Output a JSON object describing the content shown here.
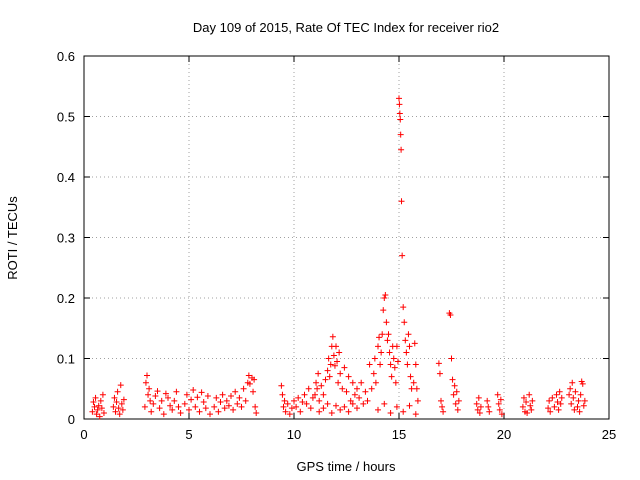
{
  "chart_data": {
    "type": "scatter",
    "title": "Day 109 of 2015, Rate Of TEC Index for receiver rio2",
    "xlabel": "GPS time / hours",
    "ylabel": "ROTI / TECUs",
    "xlim": [
      0,
      25
    ],
    "ylim": [
      0,
      0.6
    ],
    "xticks": [
      0,
      5,
      10,
      15,
      20,
      25
    ],
    "xtick_labels": [
      "0",
      "5",
      "10",
      "15",
      "20",
      "25"
    ],
    "yticks": [
      0,
      0.1,
      0.2,
      0.3,
      0.4,
      0.5,
      0.6
    ],
    "ytick_labels": [
      "0",
      "0.1",
      "0.2",
      "0.3",
      "0.4",
      "0.5",
      "0.6"
    ],
    "grid": true,
    "marker": "+",
    "color": "#ff0000",
    "series": [
      {
        "name": "rio2",
        "points": [
          [
            0.4,
            0.012
          ],
          [
            0.45,
            0.028
          ],
          [
            0.5,
            0.02
          ],
          [
            0.55,
            0.035
          ],
          [
            0.6,
            0.008
          ],
          [
            0.65,
            0.015
          ],
          [
            0.7,
            0.022
          ],
          [
            0.75,
            0.004
          ],
          [
            0.8,
            0.03
          ],
          [
            0.85,
            0.018
          ],
          [
            0.9,
            0.04
          ],
          [
            0.95,
            0.01
          ],
          [
            1.4,
            0.02
          ],
          [
            1.45,
            0.035
          ],
          [
            1.5,
            0.012
          ],
          [
            1.55,
            0.028
          ],
          [
            1.6,
            0.045
          ],
          [
            1.65,
            0.018
          ],
          [
            1.7,
            0.008
          ],
          [
            1.75,
            0.056
          ],
          [
            1.8,
            0.025
          ],
          [
            1.85,
            0.015
          ],
          [
            1.9,
            0.032
          ],
          [
            2.9,
            0.02
          ],
          [
            2.95,
            0.06
          ],
          [
            3.0,
            0.072
          ],
          [
            3.05,
            0.04
          ],
          [
            3.1,
            0.05
          ],
          [
            3.15,
            0.03
          ],
          [
            3.2,
            0.012
          ],
          [
            3.3,
            0.025
          ],
          [
            3.4,
            0.038
          ],
          [
            3.5,
            0.046
          ],
          [
            3.6,
            0.018
          ],
          [
            3.7,
            0.03
          ],
          [
            3.8,
            0.008
          ],
          [
            3.9,
            0.042
          ],
          [
            4.0,
            0.035
          ],
          [
            4.1,
            0.022
          ],
          [
            4.2,
            0.015
          ],
          [
            4.3,
            0.03
          ],
          [
            4.4,
            0.045
          ],
          [
            4.5,
            0.02
          ],
          [
            4.6,
            0.01
          ],
          [
            4.8,
            0.025
          ],
          [
            4.9,
            0.04
          ],
          [
            5.0,
            0.015
          ],
          [
            5.1,
            0.032
          ],
          [
            5.2,
            0.048
          ],
          [
            5.3,
            0.02
          ],
          [
            5.4,
            0.036
          ],
          [
            5.5,
            0.012
          ],
          [
            5.6,
            0.044
          ],
          [
            5.7,
            0.028
          ],
          [
            5.8,
            0.018
          ],
          [
            5.9,
            0.038
          ],
          [
            6.0,
            0.008
          ],
          [
            6.2,
            0.02
          ],
          [
            6.3,
            0.035
          ],
          [
            6.4,
            0.012
          ],
          [
            6.5,
            0.028
          ],
          [
            6.6,
            0.04
          ],
          [
            6.7,
            0.018
          ],
          [
            6.8,
            0.03
          ],
          [
            6.9,
            0.022
          ],
          [
            7.0,
            0.038
          ],
          [
            7.1,
            0.015
          ],
          [
            7.2,
            0.045
          ],
          [
            7.3,
            0.025
          ],
          [
            7.4,
            0.035
          ],
          [
            7.5,
            0.02
          ],
          [
            7.6,
            0.05
          ],
          [
            7.7,
            0.03
          ],
          [
            7.8,
            0.06
          ],
          [
            7.85,
            0.072
          ],
          [
            7.9,
            0.058
          ],
          [
            8.0,
            0.068
          ],
          [
            8.05,
            0.045
          ],
          [
            8.1,
            0.065
          ],
          [
            8.15,
            0.02
          ],
          [
            8.2,
            0.01
          ],
          [
            9.4,
            0.055
          ],
          [
            9.45,
            0.04
          ],
          [
            9.5,
            0.02
          ],
          [
            9.55,
            0.03
          ],
          [
            9.6,
            0.012
          ],
          [
            9.7,
            0.025
          ],
          [
            9.8,
            0.008
          ],
          [
            9.9,
            0.018
          ],
          [
            10.0,
            0.03
          ],
          [
            10.1,
            0.02
          ],
          [
            10.2,
            0.035
          ],
          [
            10.3,
            0.012
          ],
          [
            10.4,
            0.028
          ],
          [
            10.5,
            0.04
          ],
          [
            10.6,
            0.025
          ],
          [
            10.7,
            0.05
          ],
          [
            10.8,
            0.018
          ],
          [
            10.9,
            0.035
          ],
          [
            11.0,
            0.04
          ],
          [
            11.05,
            0.06
          ],
          [
            11.1,
            0.05
          ],
          [
            11.15,
            0.075
          ],
          [
            11.2,
            0.03
          ],
          [
            11.3,
            0.055
          ],
          [
            11.4,
            0.04
          ],
          [
            11.5,
            0.065
          ],
          [
            11.6,
            0.08
          ],
          [
            11.65,
            0.1
          ],
          [
            11.7,
            0.07
          ],
          [
            11.75,
            0.09
          ],
          [
            11.8,
            0.12
          ],
          [
            11.85,
            0.136
          ],
          [
            11.9,
            0.105
          ],
          [
            11.95,
            0.088
          ],
          [
            12.0,
            0.12
          ],
          [
            12.05,
            0.095
          ],
          [
            12.1,
            0.06
          ],
          [
            12.15,
            0.11
          ],
          [
            12.2,
            0.075
          ],
          [
            12.3,
            0.05
          ],
          [
            12.4,
            0.085
          ],
          [
            12.5,
            0.045
          ],
          [
            12.6,
            0.07
          ],
          [
            12.7,
            0.03
          ],
          [
            12.8,
            0.06
          ],
          [
            12.9,
            0.04
          ],
          [
            11.2,
            0.012
          ],
          [
            11.4,
            0.018
          ],
          [
            11.6,
            0.025
          ],
          [
            11.8,
            0.01
          ],
          [
            12.0,
            0.022
          ],
          [
            12.2,
            0.015
          ],
          [
            12.4,
            0.02
          ],
          [
            12.6,
            0.012
          ],
          [
            12.8,
            0.025
          ],
          [
            13.0,
            0.018
          ],
          [
            13.0,
            0.05
          ],
          [
            13.1,
            0.035
          ],
          [
            13.2,
            0.06
          ],
          [
            13.3,
            0.025
          ],
          [
            13.4,
            0.045
          ],
          [
            13.5,
            0.03
          ],
          [
            13.6,
            0.09
          ],
          [
            13.7,
            0.05
          ],
          [
            13.8,
            0.075
          ],
          [
            13.85,
            0.1
          ],
          [
            13.9,
            0.06
          ],
          [
            14.0,
            0.12
          ],
          [
            14.05,
            0.135
          ],
          [
            14.1,
            0.09
          ],
          [
            14.15,
            0.11
          ],
          [
            14.2,
            0.14
          ],
          [
            14.25,
            0.18
          ],
          [
            14.3,
            0.2
          ],
          [
            14.35,
            0.205
          ],
          [
            14.4,
            0.16
          ],
          [
            14.45,
            0.13
          ],
          [
            14.5,
            0.14
          ],
          [
            14.55,
            0.11
          ],
          [
            14.6,
            0.09
          ],
          [
            14.65,
            0.07
          ],
          [
            14.7,
            0.12
          ],
          [
            14.75,
            0.1
          ],
          [
            14.8,
            0.085
          ],
          [
            14.85,
            0.06
          ],
          [
            14.9,
            0.12
          ],
          [
            14.95,
            0.095
          ],
          [
            15.0,
            0.53
          ],
          [
            15.02,
            0.52
          ],
          [
            15.04,
            0.505
          ],
          [
            15.06,
            0.495
          ],
          [
            15.08,
            0.47
          ],
          [
            15.1,
            0.445
          ],
          [
            15.12,
            0.36
          ],
          [
            15.15,
            0.27
          ],
          [
            15.2,
            0.185
          ],
          [
            15.25,
            0.16
          ],
          [
            15.3,
            0.13
          ],
          [
            15.35,
            0.11
          ],
          [
            15.4,
            0.09
          ],
          [
            15.45,
            0.14
          ],
          [
            15.5,
            0.12
          ],
          [
            15.55,
            0.07
          ],
          [
            15.6,
            0.05
          ],
          [
            15.7,
            0.06
          ],
          [
            15.75,
            0.125
          ],
          [
            15.8,
            0.09
          ],
          [
            15.85,
            0.05
          ],
          [
            15.9,
            0.03
          ],
          [
            14.0,
            0.015
          ],
          [
            14.3,
            0.025
          ],
          [
            14.6,
            0.01
          ],
          [
            14.9,
            0.02
          ],
          [
            15.2,
            0.012
          ],
          [
            15.5,
            0.022
          ],
          [
            15.8,
            0.008
          ],
          [
            16.9,
            0.092
          ],
          [
            16.95,
            0.075
          ],
          [
            17.0,
            0.03
          ],
          [
            17.05,
            0.02
          ],
          [
            17.1,
            0.012
          ],
          [
            17.4,
            0.175
          ],
          [
            17.45,
            0.172
          ],
          [
            17.5,
            0.1
          ],
          [
            17.55,
            0.065
          ],
          [
            17.6,
            0.04
          ],
          [
            17.65,
            0.055
          ],
          [
            17.7,
            0.025
          ],
          [
            17.75,
            0.045
          ],
          [
            17.8,
            0.015
          ],
          [
            17.85,
            0.03
          ],
          [
            18.7,
            0.025
          ],
          [
            18.75,
            0.015
          ],
          [
            18.8,
            0.035
          ],
          [
            18.85,
            0.01
          ],
          [
            18.9,
            0.02
          ],
          [
            19.2,
            0.03
          ],
          [
            19.25,
            0.02
          ],
          [
            19.3,
            0.012
          ],
          [
            19.7,
            0.04
          ],
          [
            19.75,
            0.025
          ],
          [
            19.8,
            0.015
          ],
          [
            19.85,
            0.032
          ],
          [
            19.9,
            0.008
          ],
          [
            20.9,
            0.02
          ],
          [
            20.95,
            0.035
          ],
          [
            21.0,
            0.012
          ],
          [
            21.05,
            0.028
          ],
          [
            21.1,
            0.01
          ],
          [
            21.2,
            0.04
          ],
          [
            21.25,
            0.022
          ],
          [
            21.3,
            0.015
          ],
          [
            21.35,
            0.03
          ],
          [
            22.1,
            0.018
          ],
          [
            22.15,
            0.03
          ],
          [
            22.2,
            0.012
          ],
          [
            22.3,
            0.035
          ],
          [
            22.4,
            0.02
          ],
          [
            22.5,
            0.04
          ],
          [
            22.55,
            0.028
          ],
          [
            22.6,
            0.015
          ],
          [
            22.65,
            0.045
          ],
          [
            22.7,
            0.025
          ],
          [
            22.75,
            0.035
          ],
          [
            23.1,
            0.04
          ],
          [
            23.15,
            0.05
          ],
          [
            23.2,
            0.025
          ],
          [
            23.25,
            0.06
          ],
          [
            23.3,
            0.035
          ],
          [
            23.35,
            0.015
          ],
          [
            23.4,
            0.045
          ],
          [
            23.5,
            0.02
          ],
          [
            23.55,
            0.03
          ],
          [
            23.6,
            0.012
          ],
          [
            23.65,
            0.04
          ],
          [
            23.7,
            0.062
          ],
          [
            23.75,
            0.058
          ],
          [
            23.8,
            0.022
          ],
          [
            23.85,
            0.03
          ]
        ]
      }
    ]
  }
}
